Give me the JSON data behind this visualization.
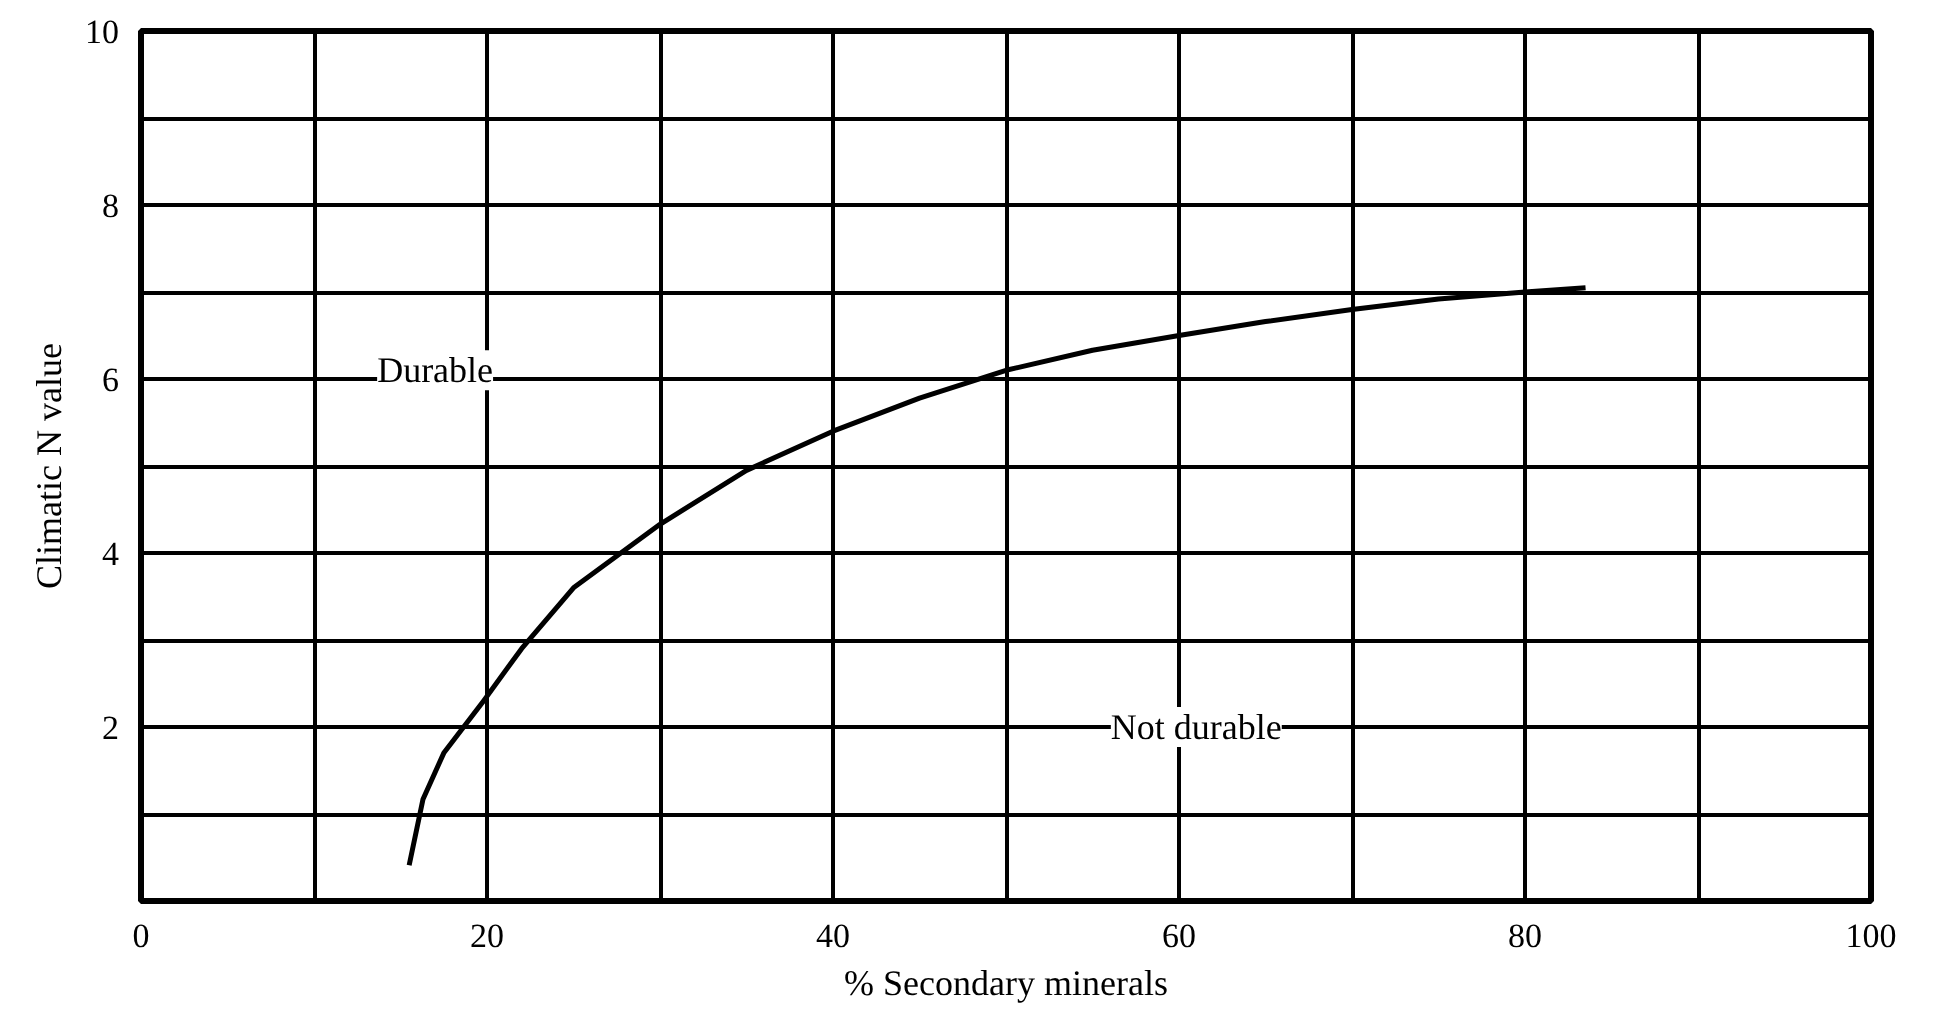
{
  "chart_data": {
    "type": "line",
    "xlabel": "% Secondary minerals",
    "ylabel": "Climatic N value",
    "x": [
      15.5,
      16.3,
      17.5,
      19.8,
      22,
      25,
      30,
      35,
      40,
      45,
      50,
      55,
      60,
      65,
      70,
      75,
      80,
      83.5
    ],
    "series": [
      {
        "color": "#000000",
        "values": [
          0.41,
          1.17,
          1.7,
          2.3,
          2.9,
          3.6,
          4.33,
          4.95,
          5.4,
          5.78,
          6.1,
          6.33,
          6.5,
          6.66,
          6.8,
          6.92,
          7.0,
          7.05
        ]
      }
    ],
    "xlim": [
      0,
      100
    ],
    "ylim": [
      0,
      10
    ],
    "xticks": [
      0,
      {
        "value": 10,
        "label": null
      },
      20,
      {
        "value": 30,
        "label": null
      },
      40,
      {
        "value": 50,
        "label": null
      },
      60,
      {
        "value": 70,
        "label": null
      },
      80,
      {
        "value": 90,
        "label": null
      },
      100
    ],
    "yticks": [
      {
        "value": 1,
        "label": null
      },
      2,
      {
        "value": 3,
        "label": null
      },
      4,
      {
        "value": 5,
        "label": null
      },
      6,
      {
        "value": 7,
        "label": null
      },
      8,
      {
        "value": 9,
        "label": null
      },
      10
    ],
    "grid": true,
    "marker": "none",
    "line_style": "solid",
    "annotations": [
      "Durable",
      "Not durable"
    ]
  }
}
